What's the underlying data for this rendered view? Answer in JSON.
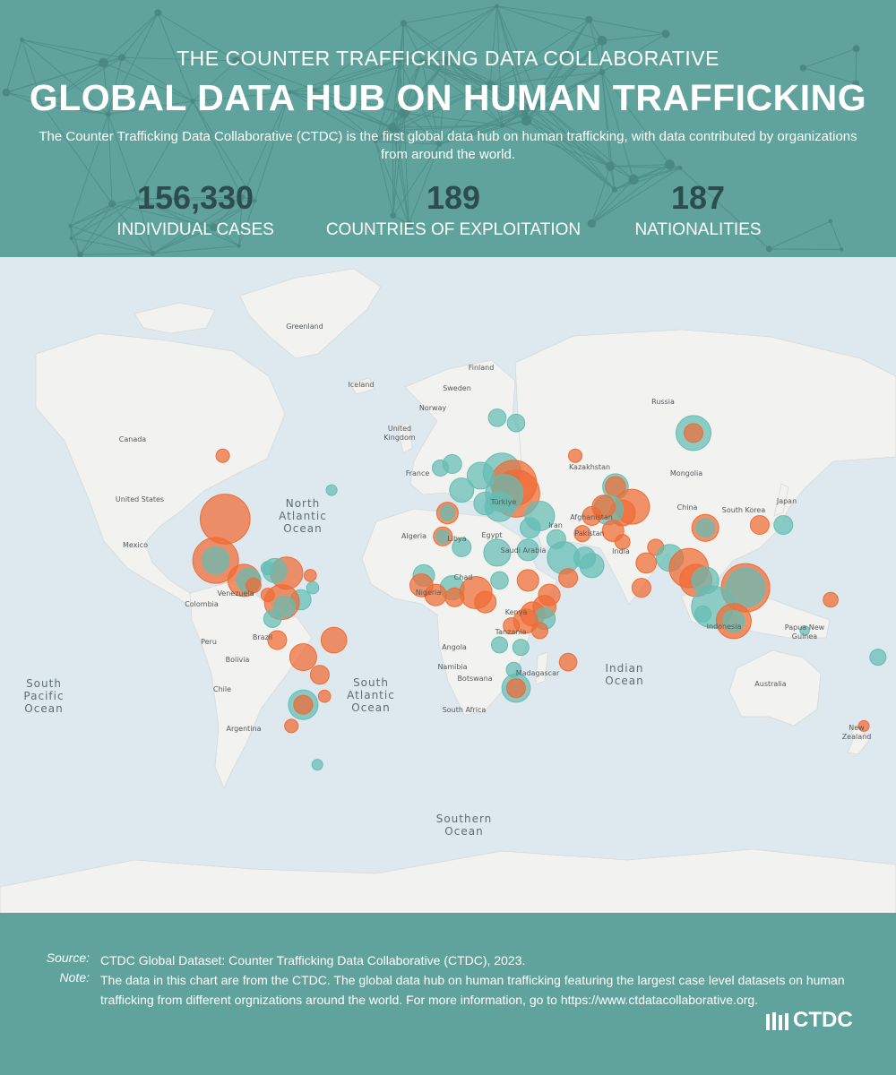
{
  "header": {
    "subtitle": "THE COUNTER TRAFFICKING DATA COLLABORATIVE",
    "title": "GLOBAL DATA HUB ON HUMAN TRAFFICKING",
    "description": "The Counter Trafficking Data Collaborative (CTDC) is the first global data hub on human trafficking, with data contributed by organizations from around the world."
  },
  "stats": [
    {
      "value": "156,330",
      "label": "INDIVIDUAL CASES"
    },
    {
      "value": "189",
      "label": "COUNTRIES OF EXPLOITATION"
    },
    {
      "value": "187",
      "label": "NATIONALITIES"
    }
  ],
  "map": {
    "colors": {
      "exploitation": "#f06b33",
      "nationality": "#64bdb4"
    },
    "ocean_labels": {
      "north_atlantic": [
        "North",
        "Atlantic",
        "Ocean"
      ],
      "south_atlantic": [
        "South",
        "Atlantic",
        "Ocean"
      ],
      "south_pacific": [
        "South",
        "Pacific",
        "Ocean"
      ],
      "indian": [
        "Indian",
        "Ocean"
      ],
      "southern": [
        "Southern",
        "Ocean"
      ]
    },
    "country_labels": {
      "greenland": "Greenland",
      "iceland": "Iceland",
      "finland": "Finland",
      "sweden": "Sweden",
      "norway": "Norway",
      "united_kingdom_1": "United",
      "united_kingdom_2": "Kingdom",
      "canada": "Canada",
      "united_states": "United States",
      "mexico": "Mexico",
      "venezuela": "Venezuela",
      "colombia": "Colombia",
      "peru": "Peru",
      "brazil": "Brazil",
      "bolivia": "Bolivia",
      "chile": "Chile",
      "argentina": "Argentina",
      "algeria": "Algeria",
      "libya": "Libya",
      "egypt": "Egypt",
      "chad": "Chad",
      "nigeria": "Nigeria",
      "kenya": "Kenya",
      "tanzania": "Tanzania",
      "angola": "Angola",
      "namibia": "Namibia",
      "botswana": "Botswana",
      "south_africa": "South Africa",
      "madagascar": "Madagascar",
      "turkiye": "Türkiye",
      "saudi_arabia": "Saudi Arabia",
      "iran": "Iran",
      "afghanistan": "Afghanistan",
      "pakistan": "Pakistan",
      "india": "India",
      "kazakhstan": "Kazakhstan",
      "mongolia": "Mongolia",
      "china": "China",
      "south_korea": "South Korea",
      "japan": "Japan",
      "russia": "Russia",
      "indonesia": "Indonesia",
      "papua_1": "Papua New",
      "papua_2": "Guinea",
      "australia": "Australia",
      "new_zealand_1": "New",
      "new_zealand_2": "Zealand",
      "france": "France"
    },
    "bubbles": [
      {
        "lat": 38,
        "lon": -98,
        "size": 3.3,
        "type": "exploitation"
      },
      {
        "lat": 23,
        "lon": -102,
        "size": 3.0,
        "type": "exploitation"
      },
      {
        "lat": 23,
        "lon": -102,
        "size": 1.6,
        "type": "nationality"
      },
      {
        "lat": 56,
        "lon": -99,
        "size": 0.6,
        "type": "exploitation"
      },
      {
        "lat": 15,
        "lon": -90,
        "size": 2.0,
        "type": "exploitation"
      },
      {
        "lat": 15,
        "lon": -88,
        "size": 1.4,
        "type": "nationality"
      },
      {
        "lat": 18,
        "lon": -72,
        "size": 2.0,
        "type": "exploitation"
      },
      {
        "lat": 19,
        "lon": -77,
        "size": 1.4,
        "type": "nationality"
      },
      {
        "lat": 20,
        "lon": -80,
        "size": 0.6,
        "type": "nationality"
      },
      {
        "lat": 13,
        "lon": -86,
        "size": 0.7,
        "type": "exploitation"
      },
      {
        "lat": 9,
        "lon": -80,
        "size": 0.6,
        "type": "exploitation"
      },
      {
        "lat": 17,
        "lon": -62,
        "size": 0.5,
        "type": "exploitation"
      },
      {
        "lat": 12,
        "lon": -61,
        "size": 0.5,
        "type": "nationality"
      },
      {
        "lat": 7,
        "lon": -66,
        "size": 1.1,
        "type": "nationality"
      },
      {
        "lat": 6,
        "lon": -74,
        "size": 2.2,
        "type": "exploitation"
      },
      {
        "lat": 4,
        "lon": -73,
        "size": 1.2,
        "type": "nationality"
      },
      {
        "lat": -1,
        "lon": -78,
        "size": 0.9,
        "type": "nationality"
      },
      {
        "lat": -10,
        "lon": -76,
        "size": 1.0,
        "type": "exploitation"
      },
      {
        "lat": -10,
        "lon": -52,
        "size": 1.5,
        "type": "exploitation"
      },
      {
        "lat": -17,
        "lon": -65,
        "size": 1.6,
        "type": "exploitation"
      },
      {
        "lat": -24,
        "lon": -58,
        "size": 1.0,
        "type": "exploitation"
      },
      {
        "lat": -35,
        "lon": -65,
        "size": 1.8,
        "type": "nationality"
      },
      {
        "lat": -35,
        "lon": -65,
        "size": 1.0,
        "type": "exploitation"
      },
      {
        "lat": -42,
        "lon": -70,
        "size": 0.6,
        "type": "exploitation"
      },
      {
        "lat": -32,
        "lon": -56,
        "size": 0.5,
        "type": "exploitation"
      },
      {
        "lat": -53,
        "lon": -59,
        "size": 0.4,
        "type": "nationality"
      },
      {
        "lat": 47,
        "lon": -53,
        "size": 0.4,
        "type": "nationality"
      },
      {
        "lat": 64,
        "lon": 17,
        "size": 0.9,
        "type": "nationality"
      },
      {
        "lat": 63,
        "lon": 25,
        "size": 0.9,
        "type": "nationality"
      },
      {
        "lat": 54,
        "lon": -2,
        "size": 1.0,
        "type": "nationality"
      },
      {
        "lat": 53,
        "lon": -7,
        "size": 0.8,
        "type": "nationality"
      },
      {
        "lat": 52,
        "lon": 19,
        "size": 2.4,
        "type": "nationality"
      },
      {
        "lat": 49,
        "lon": 24,
        "size": 3.0,
        "type": "exploitation"
      },
      {
        "lat": 46,
        "lon": 25,
        "size": 3.1,
        "type": "exploitation"
      },
      {
        "lat": 46,
        "lon": 20,
        "size": 2.4,
        "type": "nationality"
      },
      {
        "lat": 42,
        "lon": 18,
        "size": 1.8,
        "type": "nationality"
      },
      {
        "lat": 47,
        "lon": 2,
        "size": 1.4,
        "type": "nationality"
      },
      {
        "lat": 51,
        "lon": 10,
        "size": 1.6,
        "type": "nationality"
      },
      {
        "lat": 43,
        "lon": 12,
        "size": 1.3,
        "type": "nationality"
      },
      {
        "lat": 40,
        "lon": -4,
        "size": 1.2,
        "type": "exploitation"
      },
      {
        "lat": 40,
        "lon": -4,
        "size": 0.7,
        "type": "nationality"
      },
      {
        "lat": 39,
        "lon": 35,
        "size": 1.8,
        "type": "nationality"
      },
      {
        "lat": 35,
        "lon": 31,
        "size": 1.1,
        "type": "nationality"
      },
      {
        "lat": 56,
        "lon": 50,
        "size": 0.6,
        "type": "exploitation"
      },
      {
        "lat": 61,
        "lon": 100,
        "size": 2.2,
        "type": "nationality"
      },
      {
        "lat": 61,
        "lon": 100,
        "size": 1.0,
        "type": "exploitation"
      },
      {
        "lat": 48,
        "lon": 67,
        "size": 1.5,
        "type": "nationality"
      },
      {
        "lat": 48,
        "lon": 67,
        "size": 1.1,
        "type": "exploitation"
      },
      {
        "lat": 42,
        "lon": 74,
        "size": 2.2,
        "type": "exploitation"
      },
      {
        "lat": 40,
        "lon": 70,
        "size": 1.5,
        "type": "exploitation"
      },
      {
        "lat": 41,
        "lon": 64,
        "size": 1.8,
        "type": "nationality"
      },
      {
        "lat": 42,
        "lon": 62,
        "size": 1.3,
        "type": "exploitation"
      },
      {
        "lat": 39,
        "lon": 57,
        "size": 1.0,
        "type": "exploitation"
      },
      {
        "lat": 34,
        "lon": 66,
        "size": 1.2,
        "type": "exploitation"
      },
      {
        "lat": 30,
        "lon": 70,
        "size": 0.7,
        "type": "exploitation"
      },
      {
        "lat": 33,
        "lon": 53,
        "size": 0.8,
        "type": "exploitation"
      },
      {
        "lat": 24,
        "lon": 45,
        "size": 2.0,
        "type": "nationality"
      },
      {
        "lat": 24,
        "lon": 54,
        "size": 1.2,
        "type": "nationality"
      },
      {
        "lat": 21,
        "lon": 57,
        "size": 1.4,
        "type": "nationality"
      },
      {
        "lat": 16,
        "lon": 47,
        "size": 1.0,
        "type": "exploitation"
      },
      {
        "lat": 31,
        "lon": 42,
        "size": 1.0,
        "type": "nationality"
      },
      {
        "lat": 26,
        "lon": 17,
        "size": 1.6,
        "type": "nationality"
      },
      {
        "lat": 27,
        "lon": 30,
        "size": 1.2,
        "type": "nationality"
      },
      {
        "lat": 28,
        "lon": 2,
        "size": 1.0,
        "type": "nationality"
      },
      {
        "lat": 32,
        "lon": -6,
        "size": 1.0,
        "type": "exploitation"
      },
      {
        "lat": 32,
        "lon": -6,
        "size": 0.6,
        "type": "nationality"
      },
      {
        "lat": 17,
        "lon": -14,
        "size": 1.2,
        "type": "nationality"
      },
      {
        "lat": 13,
        "lon": -15,
        "size": 1.3,
        "type": "exploitation"
      },
      {
        "lat": 12,
        "lon": -2,
        "size": 1.4,
        "type": "nationality"
      },
      {
        "lat": 10,
        "lon": 8,
        "size": 2.0,
        "type": "exploitation"
      },
      {
        "lat": 9,
        "lon": -9,
        "size": 1.2,
        "type": "exploitation"
      },
      {
        "lat": 8,
        "lon": -1,
        "size": 1.0,
        "type": "exploitation"
      },
      {
        "lat": 6,
        "lon": 12,
        "size": 1.2,
        "type": "exploitation"
      },
      {
        "lat": 15,
        "lon": 18,
        "size": 0.9,
        "type": "nationality"
      },
      {
        "lat": 15,
        "lon": 30,
        "size": 1.2,
        "type": "exploitation"
      },
      {
        "lat": 9,
        "lon": 39,
        "size": 1.2,
        "type": "exploitation"
      },
      {
        "lat": 4,
        "lon": 37,
        "size": 1.3,
        "type": "exploitation"
      },
      {
        "lat": 1,
        "lon": 32,
        "size": 1.4,
        "type": "exploitation"
      },
      {
        "lat": -1,
        "lon": 37,
        "size": 1.2,
        "type": "nationality"
      },
      {
        "lat": -2,
        "lon": 29,
        "size": 1.4,
        "type": "exploitation"
      },
      {
        "lat": -6,
        "lon": 35,
        "size": 0.8,
        "type": "exploitation"
      },
      {
        "lat": -4,
        "lon": 23,
        "size": 0.8,
        "type": "exploitation"
      },
      {
        "lat": -12,
        "lon": 18,
        "size": 0.8,
        "type": "nationality"
      },
      {
        "lat": -13,
        "lon": 27,
        "size": 0.8,
        "type": "nationality"
      },
      {
        "lat": -19,
        "lon": 47,
        "size": 0.9,
        "type": "exploitation"
      },
      {
        "lat": -22,
        "lon": 24,
        "size": 0.7,
        "type": "nationality"
      },
      {
        "lat": -29,
        "lon": 25,
        "size": 1.7,
        "type": "nationality"
      },
      {
        "lat": -29,
        "lon": 25,
        "size": 1.0,
        "type": "exploitation"
      },
      {
        "lat": 22,
        "lon": 80,
        "size": 1.1,
        "type": "exploitation"
      },
      {
        "lat": 28,
        "lon": 84,
        "size": 0.8,
        "type": "exploitation"
      },
      {
        "lat": 24,
        "lon": 90,
        "size": 1.6,
        "type": "nationality"
      },
      {
        "lat": 12,
        "lon": 78,
        "size": 1.0,
        "type": "exploitation"
      },
      {
        "lat": 35,
        "lon": 105,
        "size": 1.6,
        "type": "exploitation"
      },
      {
        "lat": 35,
        "lon": 105,
        "size": 1.0,
        "type": "nationality"
      },
      {
        "lat": 36,
        "lon": 128,
        "size": 1.0,
        "type": "exploitation"
      },
      {
        "lat": 36,
        "lon": 138,
        "size": 1.0,
        "type": "nationality"
      },
      {
        "lat": 20,
        "lon": 98,
        "size": 2.5,
        "type": "exploitation"
      },
      {
        "lat": 15,
        "lon": 101,
        "size": 2.0,
        "type": "exploitation"
      },
      {
        "lat": 15,
        "lon": 105,
        "size": 1.6,
        "type": "nationality"
      },
      {
        "lat": 12,
        "lon": 122,
        "size": 3.2,
        "type": "exploitation"
      },
      {
        "lat": 12,
        "lon": 122,
        "size": 2.5,
        "type": "nationality"
      },
      {
        "lat": 4,
        "lon": 108,
        "size": 2.7,
        "type": "nationality"
      },
      {
        "lat": -2,
        "lon": 117,
        "size": 2.2,
        "type": "exploitation"
      },
      {
        "lat": -2,
        "lon": 117,
        "size": 1.2,
        "type": "nationality"
      },
      {
        "lat": 1,
        "lon": 104,
        "size": 0.8,
        "type": "nationality"
      },
      {
        "lat": -6,
        "lon": 147,
        "size": 0.3,
        "type": "nationality"
      },
      {
        "lat": -17,
        "lon": 178,
        "size": 0.8,
        "type": "nationality"
      },
      {
        "lat": 7,
        "lon": 158,
        "size": 0.7,
        "type": "exploitation"
      },
      {
        "lat": -42,
        "lon": 172,
        "size": 0.4,
        "type": "exploitation"
      }
    ]
  },
  "footer": {
    "source_key": "Source:",
    "source_text": "CTDC Global Dataset: Counter Trafficking Data Collaborative (CTDC), 2023.",
    "note_key": "Note:",
    "note_text": "The data in this chart are from the CTDC. The global data hub on human trafficking featuring the largest case level datasets on human trafficking  from different orgnizations around the world. For more information, go to https://www.ctdatacollaborative.org.",
    "logo_text": "CTDC"
  }
}
